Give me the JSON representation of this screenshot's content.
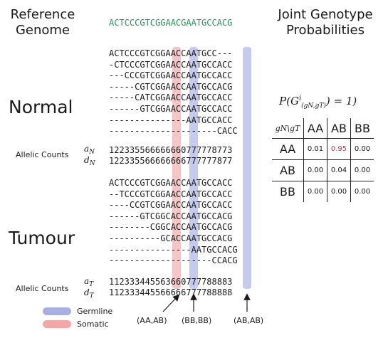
{
  "headers": {
    "reference_genome": [
      "Reference",
      "Genome"
    ],
    "joint_probabilities": [
      "Joint Genotype",
      "Probabilities"
    ]
  },
  "reference_sequence": "ACTCCCGTCGGAACGAATGCCACG",
  "sections": {
    "normal": {
      "label": "Normal",
      "reads": [
        "ACTCCCGTCGGAACCAATGCC---",
        "-CTCCCGTCGGAACCAATGCCACC",
        "---CCCGTCGGAACCAATGCCACC",
        "-----CGTCGGAACCAATGCCACG",
        "-----CATCGGAACCAATGCCACC",
        "------GTCGGAACCAATGCCACC",
        "---------------AATGCCACC",
        "---------------------CACC"
      ],
      "count_label": "Allelic Counts",
      "a_label": "a",
      "a_sub": "N",
      "d_label": "d",
      "d_sub": "N",
      "a_counts": "122335566666660777778773",
      "d_counts": "122335566666666777777877"
    },
    "tumour": {
      "label": "Tumour",
      "reads": [
        "ACTCCCGTCGGAACCAATGCCACC",
        "--TCCCGTCGGAACCAATGCCACC",
        "----CCGTCGGAACCAATGCCACC",
        "------GTCGGCACCAATGCCACG",
        "--------CGGCACCAATGCCACG",
        "----------GCACCAATGCCACG",
        "----------------AATGCCACG",
        "--------------------CCACG"
      ],
      "count_label": "Allelic Counts",
      "a_label": "a",
      "a_sub": "T",
      "d_label": "d",
      "d_sub": "T",
      "a_counts": "112333445563660777788883",
      "d_counts": "112333445566666777788888"
    }
  },
  "formula": {
    "text": "P(G",
    "sup": "i",
    "sub": "(gN,gT)",
    "tail": ") = 1)"
  },
  "table": {
    "corner": "gN\\gT",
    "columns": [
      "AA",
      "AB",
      "BB"
    ],
    "rows": [
      {
        "label": "AA",
        "values": [
          "0.01",
          "0.95",
          "0.00"
        ]
      },
      {
        "label": "AB",
        "values": [
          "0.00",
          "0.04",
          "0.00"
        ]
      },
      {
        "label": "BB",
        "values": [
          "0.00",
          "0.00",
          "0.00"
        ]
      }
    ],
    "highlight_color": "#d9343c"
  },
  "legend": [
    {
      "label": "Germline",
      "color": "#a8afe3"
    },
    {
      "label": "Somatic",
      "color": "#f3a6a6"
    }
  ],
  "annotations": [
    "(AA,AB)",
    "(BB,BB)",
    "(AB,AB)"
  ]
}
